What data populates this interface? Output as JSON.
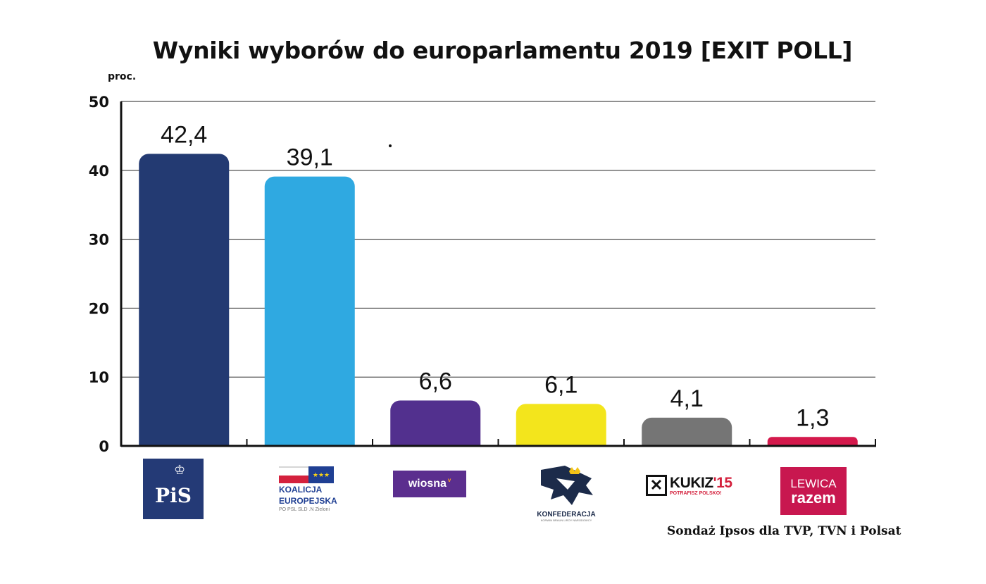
{
  "chart_data": {
    "type": "bar",
    "title": "Wyniki wyborów do europarlamentu 2019 [EXIT POLL]",
    "ylabel": "proc.",
    "xlabel": "",
    "ylim": [
      0,
      50
    ],
    "yticks": [
      "0",
      "10",
      "20",
      "30",
      "40",
      "50"
    ],
    "grid": true,
    "categories": [
      "PiS",
      "Koalicja Europejska",
      "Wiosna",
      "Konfederacja",
      "Kukiz'15",
      "Lewica Razem"
    ],
    "values": [
      42.4,
      39.1,
      6.6,
      6.1,
      4.1,
      1.3
    ],
    "value_labels": [
      "42,4",
      "39,1",
      "6,6",
      "6,1",
      "4,1",
      "1,3"
    ],
    "colors": [
      "#233a72",
      "#2fa9e1",
      "#52308e",
      "#f3e51c",
      "#757575",
      "#d4194c"
    ],
    "source": "Sondaż Ipsos dla TVP, TVN i Polsat"
  },
  "logos": {
    "pis": {
      "text": "PiS",
      "icon": "crown-eagle-icon"
    },
    "ke": {
      "text1": "KOALICJA",
      "text2": "EUROPEJSKA",
      "sub": "PO PSL SLD .N Zieloni",
      "icon": "pl-eu-flags-icon"
    },
    "wiosna": {
      "text": "wiosna",
      "icon": "spring-mark-icon"
    },
    "konf": {
      "text": "KONFEDERACJA",
      "sub": "KORWIN BRAUN LIROY NARODOWCY",
      "icon": "eagle-crown-icon"
    },
    "kukiz": {
      "text": "KUKIZ",
      "num": "'15",
      "sub": "POTRAFISZ POLSKO!",
      "icon": "x-box-icon"
    },
    "razem": {
      "text1": "LEWICA",
      "text2": "razem"
    }
  }
}
